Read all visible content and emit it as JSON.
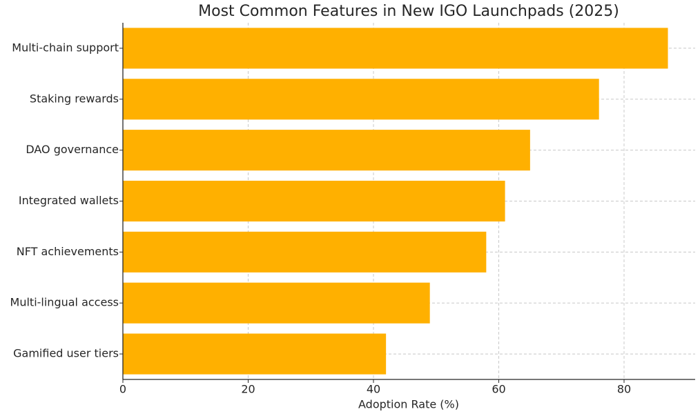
{
  "chart_data": {
    "type": "hbar",
    "title": "Most Common Features in New IGO Launchpads (2025)",
    "x_label": "Adoption Rate (%)",
    "categories": [
      "Multi-chain support",
      "Staking rewards",
      "DAO governance",
      "Integrated wallets",
      "NFT achievements",
      "Multi-lingual access",
      "Gamified user tiers"
    ],
    "values": [
      87,
      76,
      65,
      61,
      58,
      49,
      42
    ],
    "color": "#ffb000",
    "xlim": [
      0,
      91.35
    ],
    "xticks": [
      0,
      20,
      40,
      60,
      80
    ],
    "grid": true
  }
}
